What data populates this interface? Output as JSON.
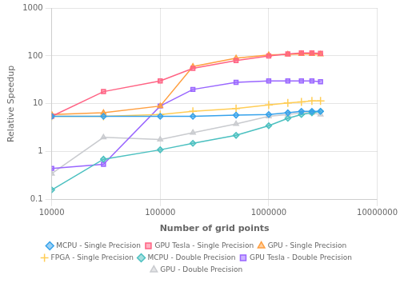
{
  "chart_data": {
    "type": "line",
    "log": true,
    "grid": true,
    "legend": "bottom",
    "xlabel": "Number of grid points",
    "ylabel": "Relative Speedup",
    "x": [
      10000,
      30000,
      100000,
      200000,
      500000,
      1000000,
      1500000,
      2000000,
      2500000,
      3000000
    ],
    "xlim": [
      10000,
      10000000
    ],
    "xticks": [
      10000,
      100000,
      1000000,
      10000000
    ],
    "ylim": [
      0.1,
      1000
    ],
    "yticks": [
      0.1,
      1,
      10,
      100,
      1000
    ],
    "series": [
      {
        "name": "MCPU - Single Precision",
        "marker": "diamond",
        "values": [
          5.5,
          5.5,
          5.5,
          5.5,
          5.8,
          6.0,
          6.5,
          7.0,
          7.0,
          7.0
        ]
      },
      {
        "name": "GPU Tesla - Single Precision",
        "marker": "square",
        "values": [
          5.5,
          18.0,
          30.0,
          55.0,
          80.0,
          100.0,
          110.0,
          115.0,
          115.0,
          113.0
        ]
      },
      {
        "name": "GPU - Single Precision",
        "marker": "triangle",
        "values": [
          6.0,
          6.5,
          9.0,
          60.0,
          90.0,
          105.0,
          108.0,
          110.0,
          110.0,
          108.0
        ]
      },
      {
        "name": "FPGA - Single Precision",
        "marker": "plus",
        "values": [
          5.5,
          5.5,
          6.0,
          7.0,
          8.0,
          9.5,
          10.5,
          11.0,
          11.5,
          11.5
        ]
      },
      {
        "name": "MCPU - Double Precision",
        "marker": "diamond",
        "values": [
          0.16,
          0.7,
          1.1,
          1.5,
          2.2,
          3.5,
          5.0,
          6.0,
          6.5,
          7.0
        ]
      },
      {
        "name": "GPU Tesla - Double Precision",
        "marker": "square",
        "values": [
          0.45,
          0.55,
          9.0,
          20.0,
          28.0,
          30.0,
          30.0,
          30.0,
          30.0,
          29.0
        ]
      },
      {
        "name": "GPU - Double Precision",
        "marker": "triangle",
        "values": [
          0.35,
          2.0,
          1.8,
          2.5,
          3.8,
          5.5,
          6.0,
          6.5,
          6.5,
          6.0
        ]
      }
    ]
  }
}
